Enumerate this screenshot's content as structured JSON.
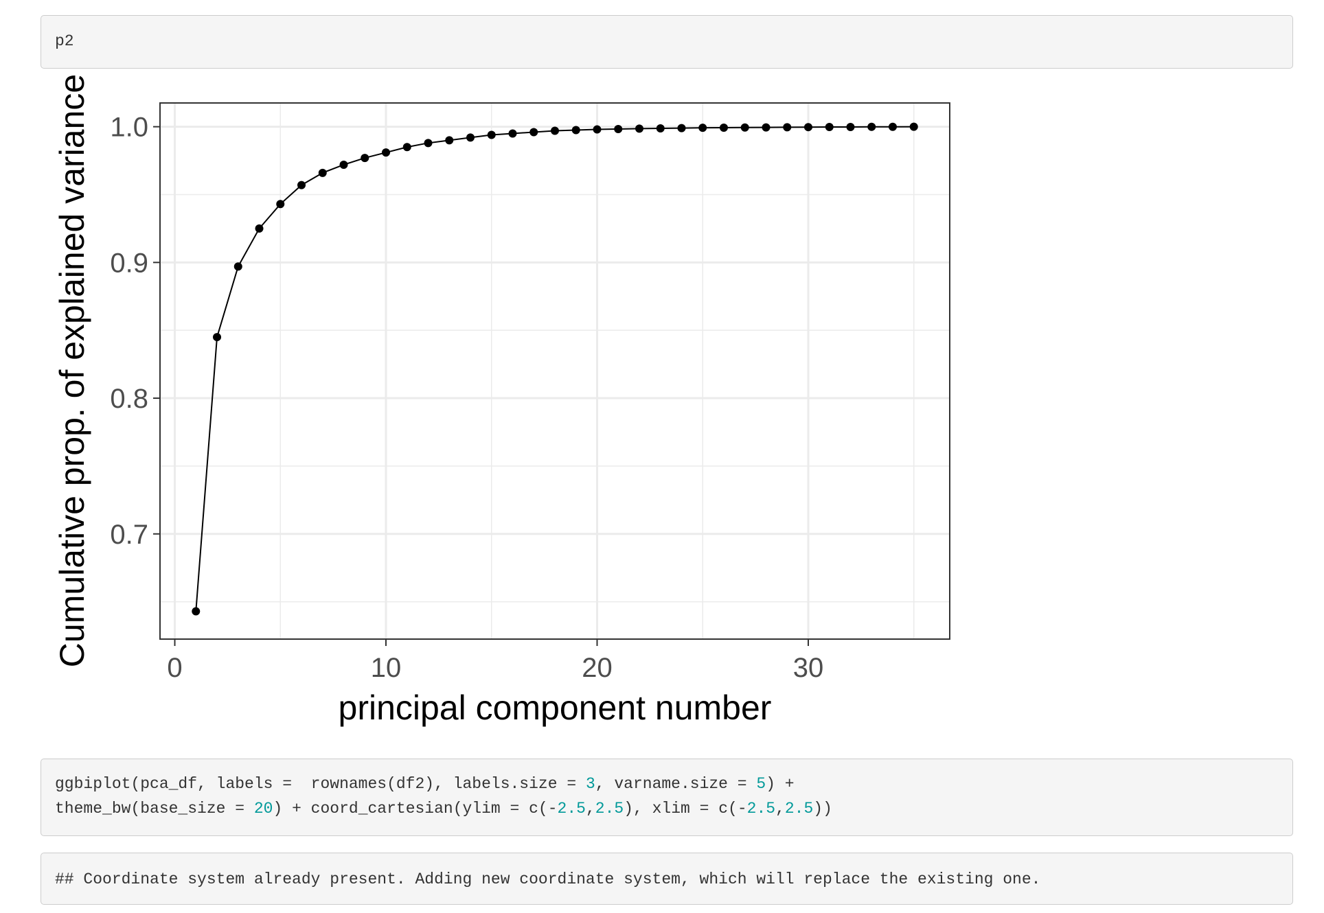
{
  "code1": {
    "line": "p2"
  },
  "code2": {
    "lines": [
      [
        {
          "t": "ggbiplot(pca_df, labels =  rownames(df2), labels.size = ",
          "c": "plain"
        },
        {
          "t": "3",
          "c": "num"
        },
        {
          "t": ", varname.size = ",
          "c": "plain"
        },
        {
          "t": "5",
          "c": "num"
        },
        {
          "t": ") +",
          "c": "plain"
        }
      ],
      [
        {
          "t": "theme_bw(base_size = ",
          "c": "plain"
        },
        {
          "t": "20",
          "c": "num"
        },
        {
          "t": ") + coord_cartesian(ylim = c(-",
          "c": "plain"
        },
        {
          "t": "2.5",
          "c": "num"
        },
        {
          "t": ",",
          "c": "plain"
        },
        {
          "t": "2.5",
          "c": "num"
        },
        {
          "t": "), xlim = c(-",
          "c": "plain"
        },
        {
          "t": "2.5",
          "c": "num"
        },
        {
          "t": ",",
          "c": "plain"
        },
        {
          "t": "2.5",
          "c": "num"
        },
        {
          "t": "))",
          "c": "plain"
        }
      ]
    ]
  },
  "output1": {
    "line": "## Coordinate system already present. Adding new coordinate system, which will replace the existing one."
  },
  "colors": {
    "code_bg": "#f5f5f5",
    "number": "#009999",
    "grid": "#ebebeb"
  },
  "chart_data": {
    "type": "line",
    "title": "",
    "xlabel": "principal component number",
    "ylabel": "Cumulative prop. of explained variance",
    "xlim": [
      -0.7,
      36.7
    ],
    "ylim": [
      0.6225,
      1.0175
    ],
    "x_ticks": [
      0,
      10,
      20,
      30
    ],
    "x_tick_labels": [
      "0",
      "10",
      "20",
      "30"
    ],
    "y_ticks": [
      0.7,
      0.8,
      0.9,
      1.0
    ],
    "y_tick_labels": [
      "0.7",
      "0.8",
      "0.9",
      "1.0"
    ],
    "grid": true,
    "legend": "none",
    "series": [
      {
        "x": [
          1,
          2,
          3,
          4,
          5,
          6,
          7,
          8,
          9,
          10,
          11,
          12,
          13,
          14,
          15,
          16,
          17,
          18,
          19,
          20,
          21,
          22,
          23,
          24,
          25,
          26,
          27,
          28,
          29,
          30,
          31,
          32,
          33,
          34,
          35
        ],
        "values": [
          0.643,
          0.845,
          0.897,
          0.925,
          0.943,
          0.957,
          0.966,
          0.972,
          0.977,
          0.981,
          0.985,
          0.988,
          0.99,
          0.992,
          0.994,
          0.995,
          0.996,
          0.997,
          0.9975,
          0.998,
          0.9983,
          0.9986,
          0.9988,
          0.999,
          0.9992,
          0.9993,
          0.9994,
          0.9995,
          0.9996,
          0.9997,
          0.9998,
          0.9998,
          0.9999,
          0.9999,
          1.0
        ]
      }
    ]
  }
}
